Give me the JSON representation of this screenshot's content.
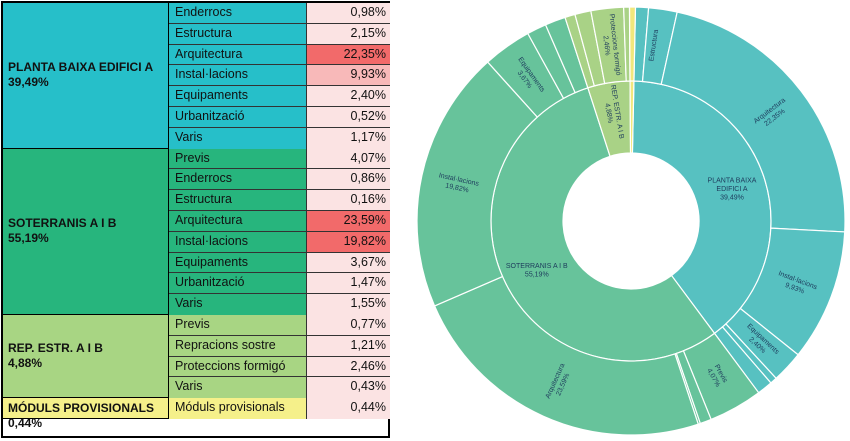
{
  "colors": {
    "group_bg": [
      "#26bfc9",
      "#27b57d",
      "#a8d583",
      "#f5f08a"
    ],
    "cat_bg": [
      "#26bfc9",
      "#27b57d",
      "#a8d583",
      "#f5f08a"
    ],
    "chart_inner": [
      "#57c1c1",
      "#67c39b",
      "#a9d286",
      "#f1e77c"
    ],
    "chart_outer": [
      "#57c1c1",
      "#67c39b",
      "#a9d286",
      "#f1e77c"
    ],
    "heat_high": "#f26a6a",
    "heat_mid": "#f8b9b9",
    "heat_low": "#fbe3e3"
  },
  "table": {
    "groups": [
      {
        "title": "PLANTA BAIXA EDIFICI A",
        "pct": "39,49%",
        "items": [
          {
            "label": "Enderrocs",
            "value": "0,98%",
            "v": 0.98
          },
          {
            "label": "Estructura",
            "value": "2,15%",
            "v": 2.15
          },
          {
            "label": "Arquitectura",
            "value": "22,35%",
            "v": 22.35
          },
          {
            "label": "Instal·lacions",
            "value": "9,93%",
            "v": 9.93
          },
          {
            "label": "Equipaments",
            "value": "2,40%",
            "v": 2.4
          },
          {
            "label": "Urbanització",
            "value": "0,52%",
            "v": 0.52
          },
          {
            "label": "Varis",
            "value": "1,17%",
            "v": 1.17
          }
        ]
      },
      {
        "title": "SOTERRANIS A I B",
        "pct": "55,19%",
        "items": [
          {
            "label": "Previs",
            "value": "4,07%",
            "v": 4.07
          },
          {
            "label": "Enderrocs",
            "value": "0,86%",
            "v": 0.86
          },
          {
            "label": "Estructura",
            "value": "0,16%",
            "v": 0.16
          },
          {
            "label": "Arquitectura",
            "value": "23,59%",
            "v": 23.59
          },
          {
            "label": "Instal·lacions",
            "value": "19,82%",
            "v": 19.82
          },
          {
            "label": "Equipaments",
            "value": "3,67%",
            "v": 3.67
          },
          {
            "label": "Urbanització",
            "value": "1,47%",
            "v": 1.47
          },
          {
            "label": "Varis",
            "value": "1,55%",
            "v": 1.55
          }
        ]
      },
      {
        "title": "REP. ESTR. A I B",
        "pct": "4,88%",
        "items": [
          {
            "label": "Previs",
            "value": "0,77%",
            "v": 0.77
          },
          {
            "label": "Repracions sostre",
            "value": "1,21%",
            "v": 1.21
          },
          {
            "label": "Proteccions formigó",
            "value": "2,46%",
            "v": 2.46
          },
          {
            "label": "Varis",
            "value": "0,43%",
            "v": 0.43
          }
        ]
      },
      {
        "title": "MÓDULS PROVISIONALS",
        "pct": "0,44%",
        "items": [
          {
            "label": "Móduls provisionals",
            "value": "0,44%",
            "v": 0.44
          }
        ]
      }
    ]
  },
  "chart_data": {
    "type": "sunburst",
    "inner": [
      {
        "name": "PLANTA BAIXA EDIFICI A",
        "value": 39.49,
        "label": "PLANTA BAIXA EDIFICI A",
        "pct": "39,49%"
      },
      {
        "name": "SOTERRANIS A I B",
        "value": 55.19,
        "label": "SOTERRANIS A I B",
        "pct": "55,19%"
      },
      {
        "name": "REP. ESTR. A I B",
        "value": 4.88,
        "label": "REP. ESTR. A I B",
        "pct": "4,88%"
      },
      {
        "name": "MÓDULS PROVISIONALS",
        "value": 0.44,
        "label": "",
        "pct": ""
      }
    ],
    "outer": [
      [
        {
          "name": "Enderrocs",
          "value": 0.98,
          "label": "",
          "pct": ""
        },
        {
          "name": "Estructura",
          "value": 2.15,
          "label": "Estructura",
          "pct": ""
        },
        {
          "name": "Arquitectura",
          "value": 22.35,
          "label": "Arquitectura",
          "pct": "22,35%"
        },
        {
          "name": "Instal·lacions",
          "value": 9.93,
          "label": "Instal·lacions",
          "pct": "9,93%"
        },
        {
          "name": "Equipaments",
          "value": 2.4,
          "label": "Equipaments",
          "pct": "2,40%"
        },
        {
          "name": "Urbanització",
          "value": 0.52,
          "label": "",
          "pct": ""
        },
        {
          "name": "Varis",
          "value": 1.17,
          "label": "",
          "pct": ""
        }
      ],
      [
        {
          "name": "Previs",
          "value": 4.07,
          "label": "Previs",
          "pct": "4,07%"
        },
        {
          "name": "Enderrocs",
          "value": 0.86,
          "label": "",
          "pct": ""
        },
        {
          "name": "Estructura",
          "value": 0.16,
          "label": "",
          "pct": ""
        },
        {
          "name": "Arquitectura",
          "value": 23.59,
          "label": "Arquitectura",
          "pct": "23,59%"
        },
        {
          "name": "Instal·lacions",
          "value": 19.82,
          "label": "Instal·lacions",
          "pct": "19,82%"
        },
        {
          "name": "Equipaments",
          "value": 3.67,
          "label": "Equipaments",
          "pct": "3,67%"
        },
        {
          "name": "Urbanització",
          "value": 1.47,
          "label": "",
          "pct": ""
        },
        {
          "name": "Varis",
          "value": 1.55,
          "label": "",
          "pct": ""
        }
      ],
      [
        {
          "name": "Previs",
          "value": 0.77,
          "label": "",
          "pct": ""
        },
        {
          "name": "Repracions sostre",
          "value": 1.21,
          "label": "",
          "pct": ""
        },
        {
          "name": "Proteccions formigó",
          "value": 2.46,
          "label": "Proteccions formigó",
          "pct": "2,46%"
        },
        {
          "name": "Varis",
          "value": 0.43,
          "label": "",
          "pct": ""
        }
      ],
      [
        {
          "name": "Móduls provisionals",
          "value": 0.44,
          "label": "",
          "pct": ""
        }
      ]
    ]
  }
}
